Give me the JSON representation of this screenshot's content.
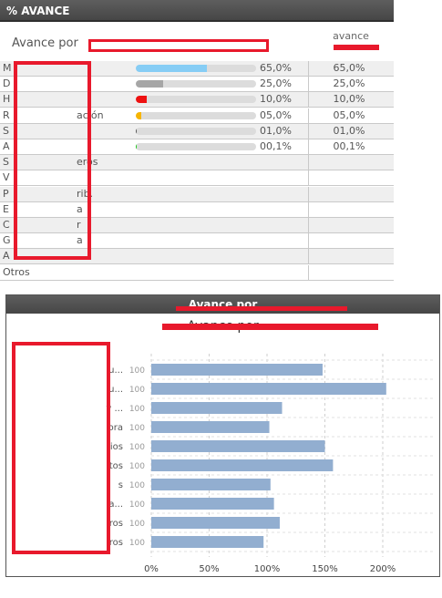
{
  "top": {
    "header": "% AVANCE",
    "subtitle": "Avance por",
    "column_header": "avance",
    "rows": [
      {
        "name": "M",
        "value": 65.0,
        "label": "65,0%",
        "label2": "65,0%",
        "color": "#86cdf5"
      },
      {
        "name": "D",
        "value": 25.0,
        "label": "25,0%",
        "label2": "25,0%",
        "color": "#a6a6a6"
      },
      {
        "name": "H",
        "value": 10.0,
        "label": "10,0%",
        "label2": "10,0%",
        "color": "#ee1111"
      },
      {
        "name": "R",
        "value": 5.0,
        "label": "05,0%",
        "label2": "05,0%",
        "color": "#f7b500",
        "tail": "ación"
      },
      {
        "name": "S",
        "value": 1.0,
        "label": "01,0%",
        "label2": "01,0%",
        "color": "#555555"
      },
      {
        "name": "A",
        "value": 0.1,
        "label": "00,1%",
        "label2": "00,1%",
        "color": "#19c919"
      },
      {
        "name": "S",
        "tail": "eros"
      },
      {
        "name": "V"
      },
      {
        "name": "P",
        "tail": "rib."
      },
      {
        "name": "E",
        "tail": "a"
      },
      {
        "name": "C",
        "tail": "r"
      },
      {
        "name": "G",
        "tail": "a"
      },
      {
        "name": "A"
      },
      {
        "name": "Otros"
      }
    ]
  },
  "bottom": {
    "header": "Avance por",
    "title": "Avance por"
  },
  "chart_data": {
    "type": "bar",
    "orientation": "horizontal",
    "categories": [
      "u...",
      "u...",
      "y ...",
      "ora",
      "ios",
      "tos",
      "s",
      "a...",
      "ros",
      "ros"
    ],
    "reference_labels": [
      "100",
      "100",
      "100",
      "100",
      "100",
      "100",
      "100",
      "100",
      "100",
      "100"
    ],
    "values": [
      148,
      203,
      113,
      102,
      150,
      157,
      103,
      106,
      111,
      97
    ],
    "x_ticks": [
      "0%",
      "50%",
      "100%",
      "150%",
      "200%"
    ],
    "xlim": [
      0,
      240
    ],
    "grid": true,
    "bar_color": "#92aed0"
  }
}
